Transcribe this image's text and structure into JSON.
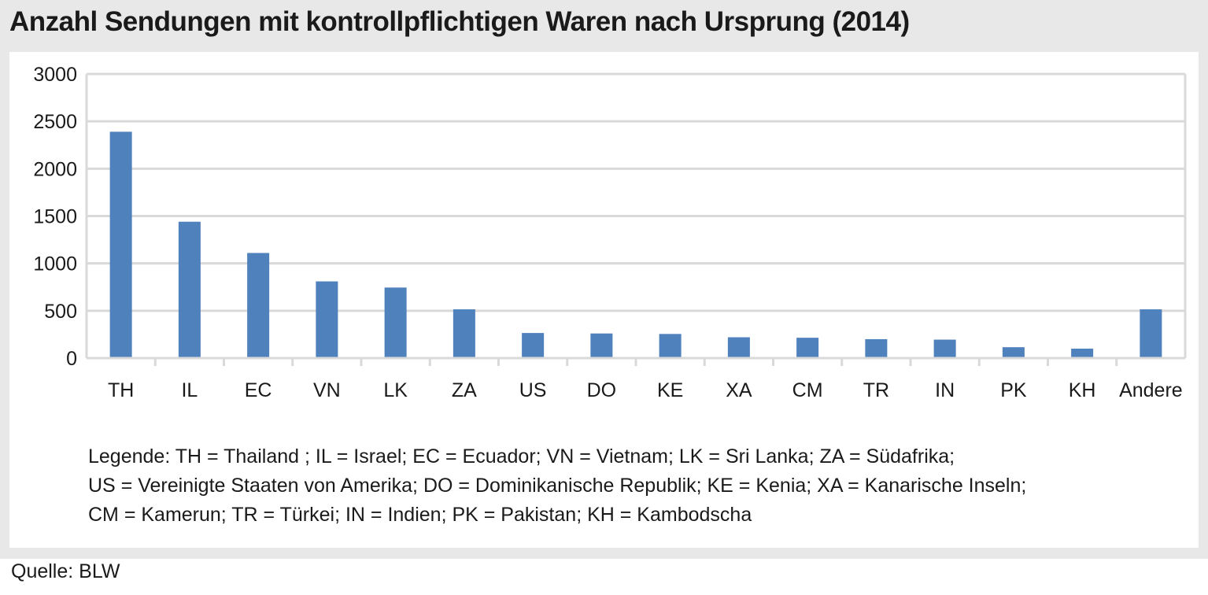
{
  "title": "Anzahl Sendungen mit kontrollpflichtigen Waren nach Ursprung (2014)",
  "colors": {
    "bar": "#4f81bd",
    "grid": "#d9d9d9",
    "frame": "#e8e8e8"
  },
  "chart_data": {
    "type": "bar",
    "title": "Anzahl Sendungen mit kontrollpflichtigen Waren nach Ursprung (2014)",
    "categories": [
      "TH",
      "IL",
      "EC",
      "VN",
      "LK",
      "ZA",
      "US",
      "DO",
      "KE",
      "XA",
      "CM",
      "TR",
      "IN",
      "PK",
      "KH",
      "Andere"
    ],
    "values": [
      2390,
      1440,
      1110,
      810,
      745,
      515,
      265,
      260,
      255,
      220,
      215,
      200,
      195,
      115,
      100,
      515
    ],
    "ylim": [
      0,
      3000
    ],
    "yticks": [
      0,
      500,
      1000,
      1500,
      2000,
      2500,
      3000
    ],
    "xlabel": "",
    "ylabel": "",
    "grid": true,
    "legend_position": "none"
  },
  "legend_lines": [
    "Legende: TH = Thailand ; IL = Israel; EC = Ecuador; VN = Vietnam; LK = Sri Lanka; ZA = Südafrika;",
    "US = Vereinigte Staaten von Amerika;  DO = Dominikanische Republik; KE = Kenia; XA = Kanarische Inseln;",
    "CM = Kamerun; TR = Türkei; IN = Indien; PK = Pakistan; KH = Kambodscha"
  ],
  "source": "Quelle: BLW"
}
